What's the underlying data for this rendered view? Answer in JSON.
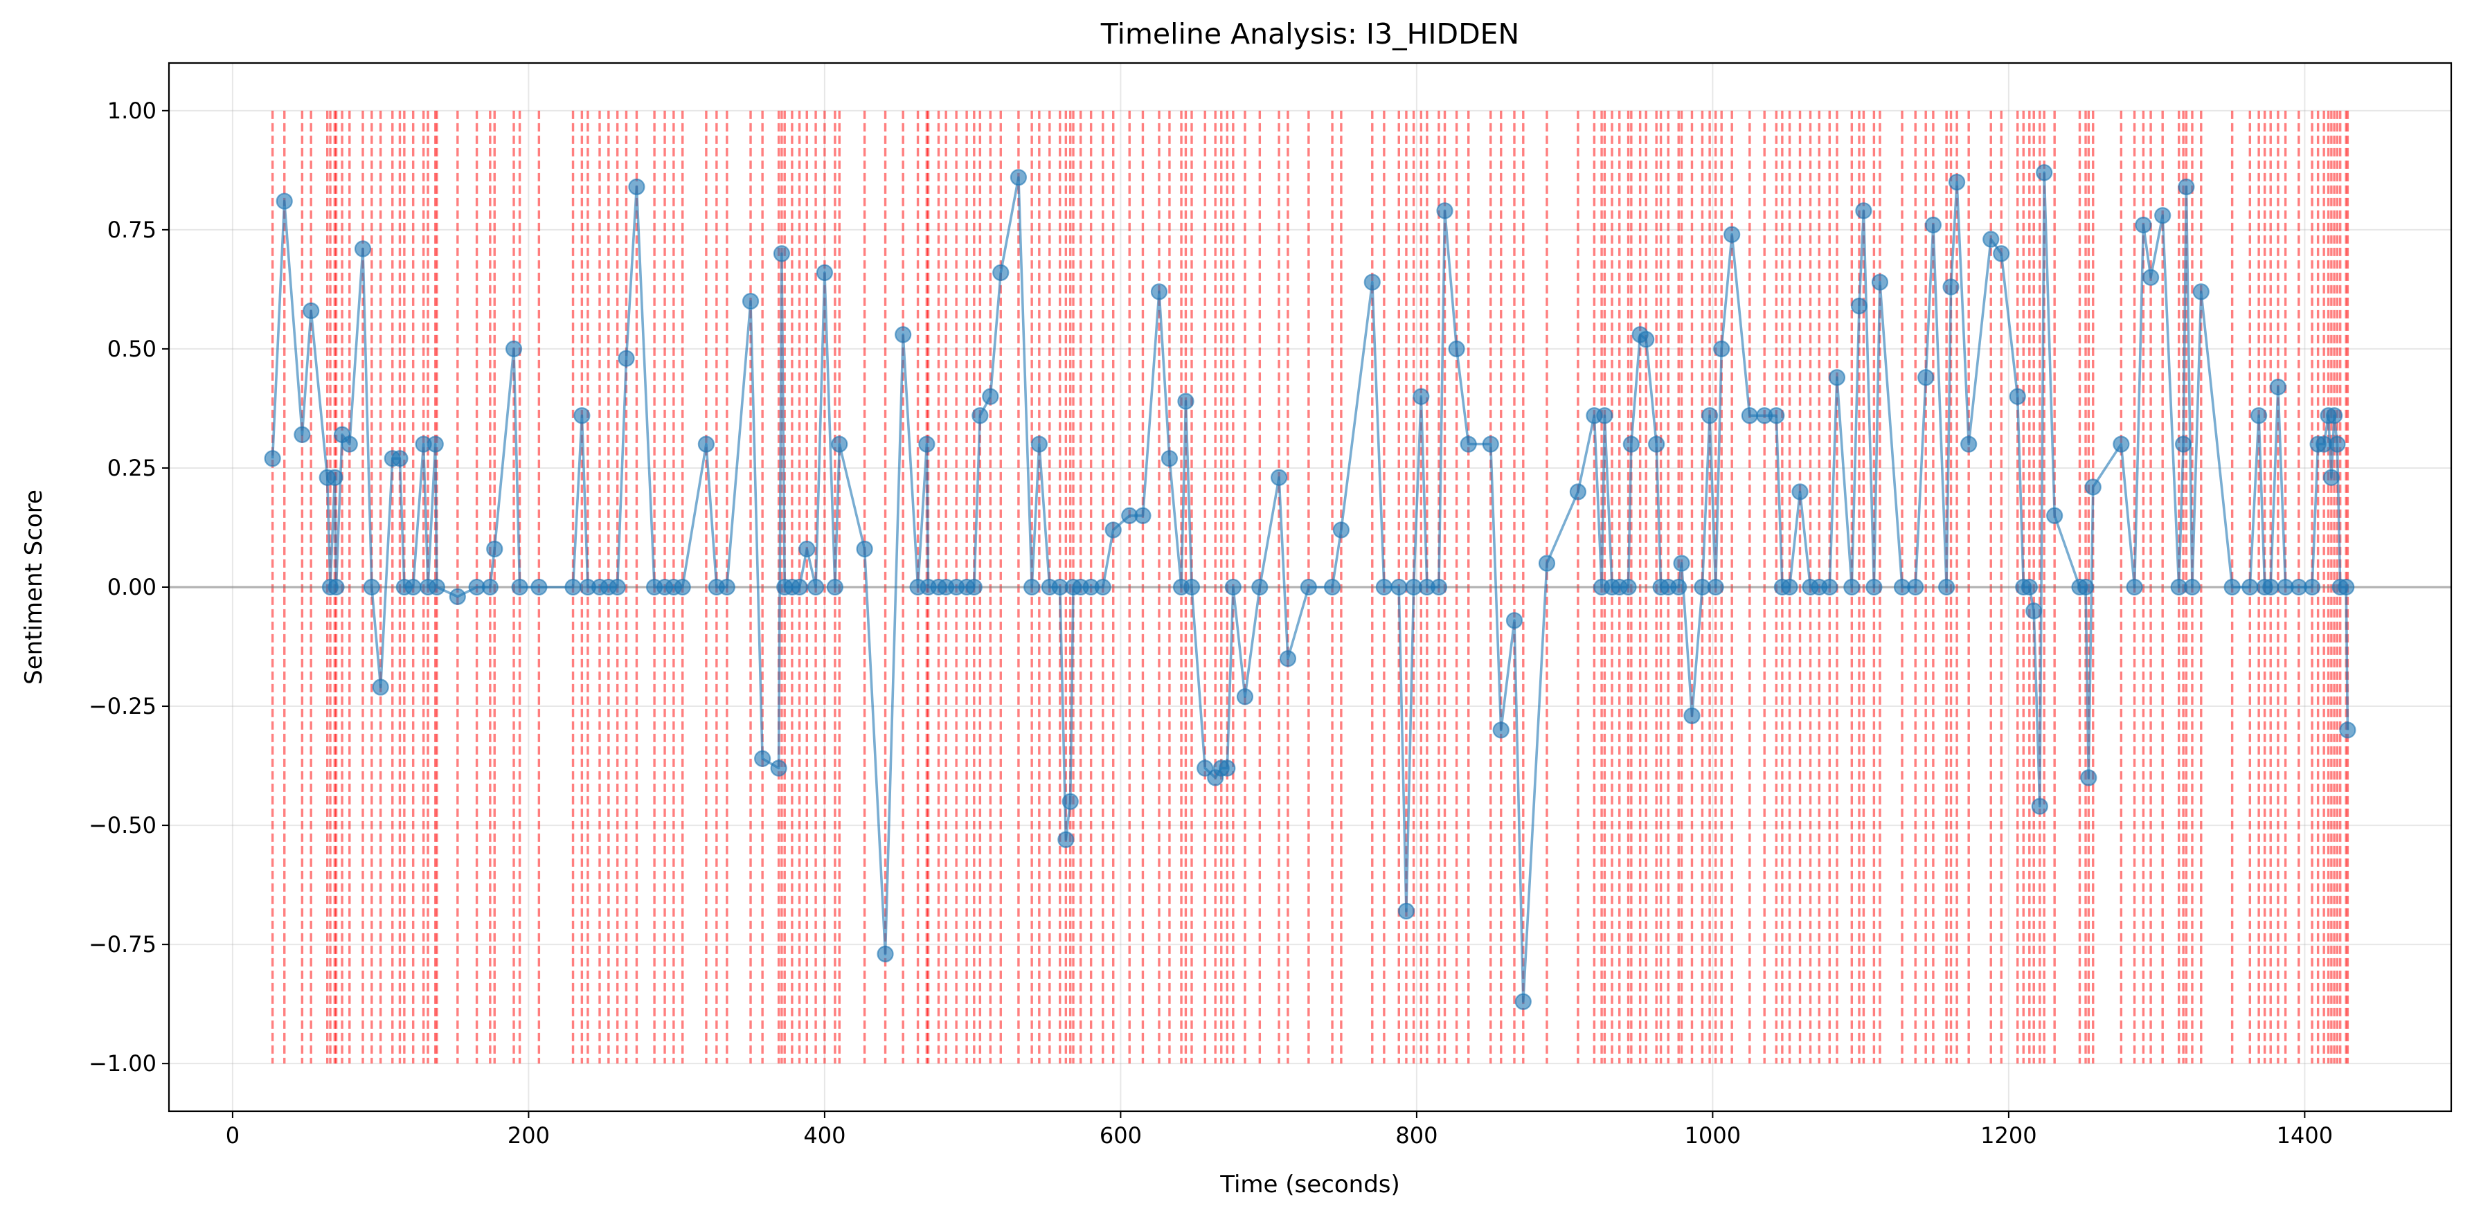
{
  "chart_data": {
    "type": "line",
    "title": "Timeline Analysis: I3_HIDDEN",
    "x_label": "Time (seconds)",
    "y_label": "Sentiment Score",
    "color": "#1f77b4",
    "event_color": "red",
    "hline": 0,
    "grid": true,
    "xlim": [
      -43,
      1499
    ],
    "ylim": [
      -1.1,
      1.1
    ],
    "xticks": [
      0,
      200,
      400,
      600,
      800,
      1000,
      1200,
      1400
    ],
    "yticks": [
      {
        "value": -1,
        "label": "−1.00"
      },
      {
        "value": -0.75,
        "label": "−0.75"
      },
      {
        "value": -0.5,
        "label": "−0.50"
      },
      {
        "value": -0.25,
        "label": "−0.25"
      },
      {
        "value": 0,
        "label": "0.00"
      },
      {
        "value": 0.25,
        "label": "0.25"
      },
      {
        "value": 0.5,
        "label": "0.50"
      },
      {
        "value": 0.75,
        "label": "0.75"
      },
      {
        "value": 1,
        "label": "1.00"
      }
    ],
    "x": [
      27,
      35,
      47,
      53,
      64,
      66,
      69,
      70,
      74,
      79,
      88,
      94,
      100,
      108,
      113,
      116,
      122,
      129,
      132,
      137,
      138,
      152,
      165,
      174,
      177,
      190,
      194,
      207,
      230,
      236,
      240,
      248,
      254,
      260,
      266,
      273,
      285,
      292,
      298,
      304,
      320,
      327,
      334,
      350,
      358,
      369,
      371,
      373,
      378,
      383,
      388,
      394,
      400,
      407,
      410,
      427,
      441,
      453,
      463,
      469,
      470,
      477,
      482,
      489,
      496,
      501,
      505,
      512,
      519,
      531,
      540,
      545,
      552,
      559,
      563,
      566,
      568,
      573,
      580,
      588,
      595,
      606,
      615,
      626,
      633,
      641,
      644,
      648,
      657,
      664,
      668,
      672,
      676,
      684,
      694,
      707,
      713,
      727,
      743,
      749,
      770,
      778,
      788,
      793,
      798,
      803,
      807,
      815,
      819,
      827,
      835,
      850,
      857,
      866,
      872,
      888,
      909,
      920,
      925,
      927,
      932,
      937,
      943,
      945,
      951,
      955,
      962,
      965,
      970,
      977,
      979,
      986,
      993,
      998,
      1002,
      1006,
      1013,
      1025,
      1035,
      1043,
      1047,
      1052,
      1059,
      1066,
      1072,
      1079,
      1084,
      1094,
      1099,
      1102,
      1109,
      1113,
      1128,
      1137,
      1144,
      1149,
      1158,
      1161,
      1165,
      1173,
      1188,
      1195,
      1206,
      1210,
      1214,
      1217,
      1221,
      1224,
      1231,
      1248,
      1252,
      1254,
      1257,
      1276,
      1285,
      1291,
      1296,
      1304,
      1315,
      1318,
      1320,
      1324,
      1330,
      1351,
      1363,
      1369,
      1373,
      1377,
      1382,
      1387,
      1396,
      1405,
      1409,
      1413,
      1416,
      1418,
      1420,
      1422,
      1424,
      1428,
      1429
    ],
    "values": [
      0.27,
      0.81,
      0.32,
      0.58,
      0.23,
      0,
      0.23,
      0,
      0.32,
      0.3,
      0.71,
      0,
      -0.21,
      0.27,
      0.27,
      0,
      0,
      0.3,
      0,
      0.3,
      0,
      -0.02,
      0,
      0,
      0.08,
      0.5,
      0,
      0,
      0,
      0.36,
      0,
      0,
      0,
      0,
      0.48,
      0.84,
      0,
      0,
      0,
      0,
      0.3,
      0,
      0,
      0.6,
      -0.36,
      -0.38,
      0.7,
      0,
      0,
      0,
      0.08,
      0,
      0.66,
      0,
      0.3,
      0.08,
      -0.77,
      0.53,
      0,
      0.3,
      0,
      0,
      0,
      0,
      0,
      0,
      0.36,
      0.4,
      0.66,
      0.86,
      0,
      0.3,
      0,
      0,
      -0.53,
      -0.45,
      0,
      0,
      0,
      0,
      0.12,
      0.15,
      0.15,
      0.62,
      0.27,
      0,
      0.39,
      0,
      -0.38,
      -0.4,
      -0.38,
      -0.38,
      0,
      -0.23,
      0,
      0.23,
      -0.15,
      0,
      0,
      0.12,
      0.64,
      0,
      0,
      -0.68,
      0,
      0.4,
      0,
      0,
      0.79,
      0.5,
      0.3,
      0.3,
      -0.3,
      -0.07,
      -0.87,
      0.05,
      0.2,
      0.36,
      0,
      0.36,
      0,
      0,
      0,
      0.3,
      0.53,
      0.52,
      0.3,
      0,
      0,
      0,
      0.05,
      -0.27,
      0,
      0.36,
      0,
      0.5,
      0.74,
      0.36,
      0.36,
      0.36,
      0,
      0,
      0.2,
      0,
      0,
      0,
      0.44,
      0,
      0.59,
      0.79,
      0,
      0.64,
      0,
      0,
      0.44,
      0.76,
      0,
      0.63,
      0.85,
      0.3,
      0.73,
      0.7,
      0.4,
      0,
      0,
      -0.05,
      -0.46,
      0.87,
      0.15,
      0,
      0,
      -0.4,
      0.21,
      0.3,
      0,
      0.76,
      0.65,
      0.78,
      0,
      0.3,
      0.84,
      0,
      0.62,
      0,
      0,
      0.36,
      0,
      0,
      0.42,
      0,
      0,
      0,
      0.3,
      0.3,
      0.36,
      0.23,
      0.36,
      0.3,
      0,
      0,
      -0.3
    ]
  }
}
